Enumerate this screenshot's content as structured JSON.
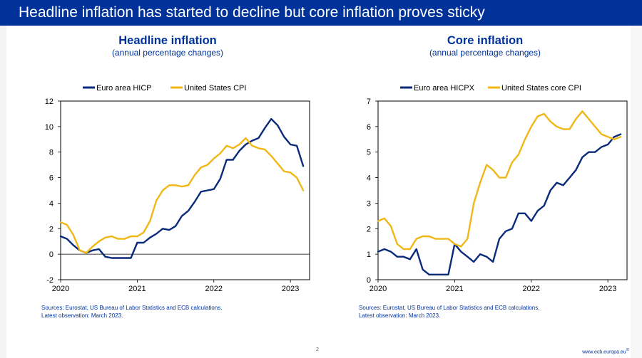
{
  "slide": {
    "title": "Headline inflation has started to decline but core inflation proves sticky",
    "page_number": "2",
    "footer_url": "www.ecb.europa.eu",
    "footer_mark": "©"
  },
  "colors": {
    "euro": "#0a2a7a",
    "us": "#f0b716",
    "brand": "#003299"
  },
  "chart_data": [
    {
      "type": "line",
      "title": "Headline inflation",
      "subtitle": "(annual percentage changes)",
      "ylim": [
        -2,
        12
      ],
      "yticks": [
        -2,
        0,
        2,
        4,
        6,
        8,
        10,
        12
      ],
      "xlim": [
        2020.0,
        2023.25
      ],
      "xticks": [
        2020,
        2021,
        2022,
        2023
      ],
      "xticklabels": [
        "2020",
        "2021",
        "2022",
        "2023"
      ],
      "series": [
        {
          "name": "Euro area HICP",
          "color": "#0a2a7a",
          "x": [
            2020.0,
            2020.083,
            2020.167,
            2020.25,
            2020.333,
            2020.417,
            2020.5,
            2020.583,
            2020.667,
            2020.75,
            2020.833,
            2020.917,
            2021.0,
            2021.083,
            2021.167,
            2021.25,
            2021.333,
            2021.417,
            2021.5,
            2021.583,
            2021.667,
            2021.75,
            2021.833,
            2021.917,
            2022.0,
            2022.083,
            2022.167,
            2022.25,
            2022.333,
            2022.417,
            2022.5,
            2022.583,
            2022.667,
            2022.75,
            2022.833,
            2022.917,
            2023.0,
            2023.083,
            2023.167
          ],
          "values": [
            1.4,
            1.2,
            0.7,
            0.3,
            0.1,
            0.3,
            0.4,
            -0.2,
            -0.3,
            -0.3,
            -0.3,
            -0.3,
            0.9,
            0.9,
            1.3,
            1.6,
            2.0,
            1.9,
            2.2,
            3.0,
            3.4,
            4.1,
            4.9,
            5.0,
            5.1,
            5.9,
            7.4,
            7.4,
            8.1,
            8.6,
            8.9,
            9.1,
            9.9,
            10.6,
            10.1,
            9.2,
            8.6,
            8.5,
            6.9
          ]
        },
        {
          "name": "United States CPI",
          "color": "#f0b716",
          "x": [
            2020.0,
            2020.083,
            2020.167,
            2020.25,
            2020.333,
            2020.417,
            2020.5,
            2020.583,
            2020.667,
            2020.75,
            2020.833,
            2020.917,
            2021.0,
            2021.083,
            2021.167,
            2021.25,
            2021.333,
            2021.417,
            2021.5,
            2021.583,
            2021.667,
            2021.75,
            2021.833,
            2021.917,
            2022.0,
            2022.083,
            2022.167,
            2022.25,
            2022.333,
            2022.417,
            2022.5,
            2022.583,
            2022.667,
            2022.75,
            2022.833,
            2022.917,
            2023.0,
            2023.083,
            2023.167
          ],
          "values": [
            2.5,
            2.3,
            1.5,
            0.3,
            0.1,
            0.6,
            1.0,
            1.3,
            1.4,
            1.2,
            1.2,
            1.4,
            1.4,
            1.7,
            2.6,
            4.2,
            5.0,
            5.4,
            5.4,
            5.3,
            5.4,
            6.2,
            6.8,
            7.0,
            7.5,
            7.9,
            8.5,
            8.3,
            8.6,
            9.1,
            8.5,
            8.3,
            8.2,
            7.7,
            7.1,
            6.5,
            6.4,
            6.0,
            5.0
          ]
        }
      ],
      "source": "Sources: Eurostat, US Bureau of Labor Statistics and ECB calculations.",
      "latest": "Latest observation: March 2023."
    },
    {
      "type": "line",
      "title": "Core inflation",
      "subtitle": "(annual percentage changes)",
      "ylim": [
        0,
        7
      ],
      "yticks": [
        0,
        1,
        2,
        3,
        4,
        5,
        6,
        7
      ],
      "xlim": [
        2020.0,
        2023.25
      ],
      "xticks": [
        2020,
        2021,
        2022,
        2023
      ],
      "xticklabels": [
        "2020",
        "2021",
        "2022",
        "2023"
      ],
      "series": [
        {
          "name": "Euro area HICPX",
          "color": "#0a2a7a",
          "x": [
            2020.0,
            2020.083,
            2020.167,
            2020.25,
            2020.333,
            2020.417,
            2020.5,
            2020.583,
            2020.667,
            2020.75,
            2020.833,
            2020.917,
            2021.0,
            2021.083,
            2021.167,
            2021.25,
            2021.333,
            2021.417,
            2021.5,
            2021.583,
            2021.667,
            2021.75,
            2021.833,
            2021.917,
            2022.0,
            2022.083,
            2022.167,
            2022.25,
            2022.333,
            2022.417,
            2022.5,
            2022.583,
            2022.667,
            2022.75,
            2022.833,
            2022.917,
            2023.0,
            2023.083,
            2023.167
          ],
          "values": [
            1.1,
            1.2,
            1.1,
            0.9,
            0.9,
            0.8,
            1.2,
            0.4,
            0.2,
            0.2,
            0.2,
            0.2,
            1.4,
            1.1,
            0.9,
            0.7,
            1.0,
            0.9,
            0.7,
            1.6,
            1.9,
            2.0,
            2.6,
            2.6,
            2.3,
            2.7,
            2.9,
            3.5,
            3.8,
            3.7,
            4.0,
            4.3,
            4.8,
            5.0,
            5.0,
            5.2,
            5.3,
            5.6,
            5.7
          ]
        },
        {
          "name": "United States core CPI",
          "color": "#f0b716",
          "x": [
            2020.0,
            2020.083,
            2020.167,
            2020.25,
            2020.333,
            2020.417,
            2020.5,
            2020.583,
            2020.667,
            2020.75,
            2020.833,
            2020.917,
            2021.0,
            2021.083,
            2021.167,
            2021.25,
            2021.333,
            2021.417,
            2021.5,
            2021.583,
            2021.667,
            2021.75,
            2021.833,
            2021.917,
            2022.0,
            2022.083,
            2022.167,
            2022.25,
            2022.333,
            2022.417,
            2022.5,
            2022.583,
            2022.667,
            2022.75,
            2022.833,
            2022.917,
            2023.0,
            2023.083,
            2023.167
          ],
          "values": [
            2.3,
            2.4,
            2.1,
            1.4,
            1.2,
            1.2,
            1.6,
            1.7,
            1.7,
            1.6,
            1.6,
            1.6,
            1.4,
            1.3,
            1.6,
            3.0,
            3.8,
            4.5,
            4.3,
            4.0,
            4.0,
            4.6,
            4.9,
            5.5,
            6.0,
            6.4,
            6.5,
            6.2,
            6.0,
            5.9,
            5.9,
            6.3,
            6.6,
            6.3,
            6.0,
            5.7,
            5.6,
            5.5,
            5.6
          ]
        }
      ],
      "source": "Sources: Eurostat, US Bureau of Labor Statistics and ECB calculations.",
      "latest": "Latest observation: March 2023."
    }
  ]
}
